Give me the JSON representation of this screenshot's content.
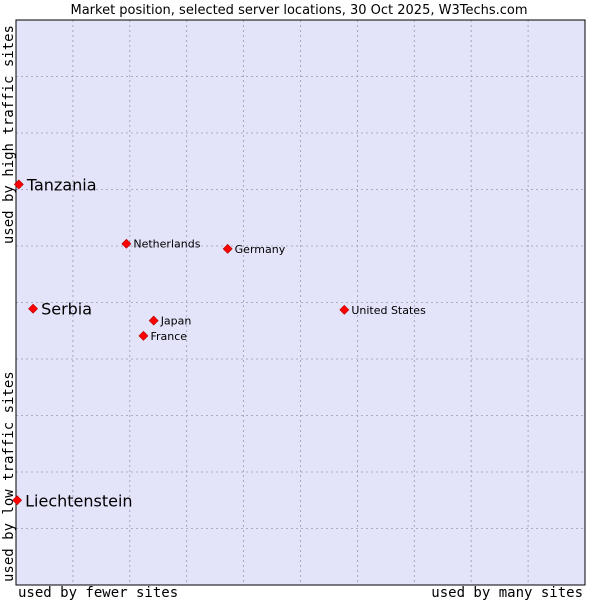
{
  "chart_data": {
    "type": "scatter",
    "title": "Market position, selected server locations, 30 Oct 2025, W3Techs.com",
    "xlabel_left": "used by fewer sites",
    "xlabel_right": "used by many sites",
    "ylabel_bottom": "used by low traffic sites",
    "ylabel_top": "used by high traffic sites",
    "xlim": [
      0,
      100
    ],
    "ylim": [
      0,
      100
    ],
    "grid": true,
    "colors": {
      "plot_bg": "#e3e3f9",
      "grid": "#9a9ab8",
      "point": "#ff0000",
      "border": "#000000"
    },
    "points": [
      {
        "label": "Tanzania",
        "x": 0.5,
        "y": 70.9,
        "emphasis": true
      },
      {
        "label": "Netherlands",
        "x": 19.4,
        "y": 60.4,
        "emphasis": false
      },
      {
        "label": "Germany",
        "x": 37.2,
        "y": 59.5,
        "emphasis": false
      },
      {
        "label": "Serbia",
        "x": 3.0,
        "y": 48.9,
        "emphasis": true
      },
      {
        "label": "United States",
        "x": 57.7,
        "y": 48.7,
        "emphasis": false
      },
      {
        "label": "Japan",
        "x": 24.2,
        "y": 46.8,
        "emphasis": false
      },
      {
        "label": "France",
        "x": 22.4,
        "y": 44.1,
        "emphasis": false
      },
      {
        "label": "Liechtenstein",
        "x": 0.2,
        "y": 15.0,
        "emphasis": true
      }
    ]
  }
}
